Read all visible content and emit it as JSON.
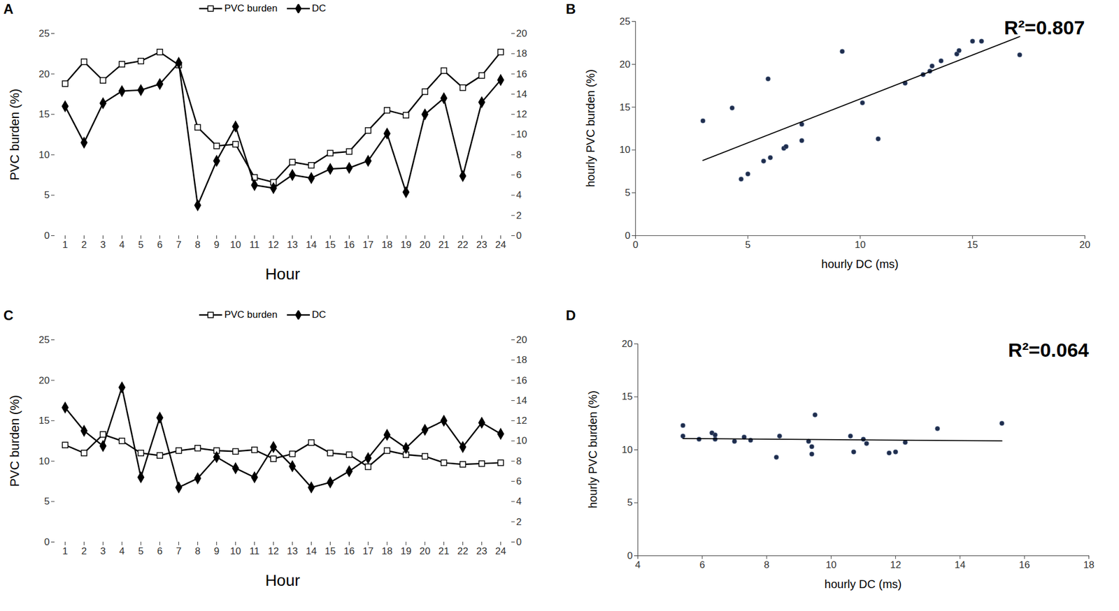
{
  "chart_data": [
    {
      "title": "A",
      "type": "line",
      "categories": [
        "1",
        "2",
        "3",
        "4",
        "5",
        "6",
        "7",
        "8",
        "9",
        "10",
        "11",
        "12",
        "13",
        "14",
        "15",
        "16",
        "17",
        "18",
        "19",
        "20",
        "21",
        "22",
        "23",
        "24"
      ],
      "xlabel": "Hour",
      "ylabel": "PVC burden (%)",
      "ylim": [
        0,
        25
      ],
      "yticks": [
        0,
        5,
        10,
        15,
        20,
        25
      ],
      "y2lim": [
        0,
        20
      ],
      "y2ticks": [
        0,
        2,
        4,
        6,
        8,
        10,
        12,
        14,
        16,
        18,
        20
      ],
      "legend": "top",
      "series": [
        {
          "name": "PVC burden",
          "color": "#000000",
          "marker": "open_square",
          "values": [
            18.8,
            21.5,
            19.2,
            21.2,
            21.6,
            22.7,
            21.1,
            13.4,
            11.1,
            11.3,
            7.2,
            6.6,
            9.1,
            8.7,
            10.2,
            10.4,
            13.0,
            15.5,
            14.9,
            17.8,
            20.4,
            18.3,
            19.8,
            22.7
          ]
        },
        {
          "name": "DC",
          "color": "#000000",
          "marker": "diamond",
          "axis": "y2",
          "values": [
            12.8,
            9.2,
            13.1,
            14.3,
            14.4,
            15.0,
            17.1,
            3.0,
            7.4,
            10.8,
            5.0,
            4.7,
            6.0,
            5.7,
            6.6,
            6.7,
            7.4,
            10.1,
            4.3,
            12.0,
            13.6,
            5.9,
            13.2,
            15.4
          ]
        }
      ]
    },
    {
      "title": "B",
      "type": "scatter",
      "xlabel": "hourly DC (ms)",
      "ylabel": "hourly PVC burden  (%)",
      "x": [
        12.8,
        9.2,
        13.1,
        14.3,
        14.4,
        15.0,
        17.1,
        3.0,
        7.4,
        10.8,
        5.0,
        4.7,
        6.0,
        5.7,
        6.6,
        6.7,
        7.4,
        10.1,
        4.3,
        12.0,
        13.6,
        5.9,
        13.2,
        15.4
      ],
      "values": [
        18.8,
        21.5,
        19.2,
        21.2,
        21.6,
        22.7,
        21.1,
        13.4,
        11.1,
        11.3,
        7.2,
        6.6,
        9.1,
        8.7,
        10.2,
        10.4,
        13.0,
        15.5,
        14.9,
        17.8,
        20.4,
        18.3,
        19.8,
        22.7
      ],
      "color": "#1f2d4d",
      "xlim": [
        0,
        20
      ],
      "xticks": [
        0,
        5,
        10,
        15,
        20
      ],
      "ylim": [
        0,
        25
      ],
      "yticks": [
        0,
        5,
        10,
        15,
        20,
        25
      ],
      "annotations": [
        "R²=0.807"
      ]
    },
    {
      "title": "C",
      "type": "line",
      "categories": [
        "1",
        "2",
        "3",
        "4",
        "5",
        "6",
        "7",
        "8",
        "9",
        "10",
        "11",
        "12",
        "13",
        "14",
        "15",
        "16",
        "17",
        "18",
        "19",
        "20",
        "21",
        "22",
        "23",
        "24"
      ],
      "xlabel": "Hour",
      "ylabel": "PVC burden (%)",
      "ylim": [
        0,
        25
      ],
      "yticks": [
        0,
        5,
        10,
        15,
        20,
        25
      ],
      "y2lim": [
        0,
        20
      ],
      "y2ticks": [
        0,
        2,
        4,
        6,
        8,
        10,
        12,
        14,
        16,
        18,
        20
      ],
      "legend": "top",
      "series": [
        {
          "name": "PVC burden",
          "color": "#000000",
          "marker": "open_square",
          "values": [
            12.0,
            11.0,
            13.3,
            12.5,
            11.0,
            10.7,
            11.3,
            11.6,
            11.3,
            11.2,
            11.4,
            10.3,
            10.9,
            12.3,
            11.0,
            10.8,
            9.3,
            11.3,
            10.8,
            10.6,
            9.8,
            9.6,
            9.7,
            9.8
          ]
        },
        {
          "name": "DC",
          "color": "#000000",
          "marker": "diamond",
          "axis": "y2",
          "values": [
            13.3,
            11.0,
            9.5,
            15.3,
            6.4,
            12.3,
            5.4,
            6.3,
            8.4,
            7.3,
            6.4,
            9.4,
            7.5,
            5.4,
            5.9,
            7.0,
            8.3,
            10.6,
            9.3,
            11.1,
            12.0,
            9.4,
            11.8,
            10.7
          ]
        }
      ]
    },
    {
      "title": "D",
      "type": "scatter",
      "xlabel": "hourly DC (ms)",
      "ylabel": "hourly PVC burden (%)",
      "x": [
        13.3,
        11.0,
        9.5,
        15.3,
        6.4,
        12.3,
        5.4,
        6.3,
        8.4,
        7.3,
        6.4,
        9.4,
        7.5,
        5.4,
        5.9,
        7.0,
        8.3,
        10.6,
        9.3,
        11.1,
        12.0,
        9.4,
        11.8,
        10.7
      ],
      "values": [
        12.0,
        11.0,
        13.3,
        12.5,
        11.0,
        10.7,
        11.3,
        11.6,
        11.3,
        11.2,
        11.4,
        10.3,
        10.9,
        12.3,
        11.0,
        10.8,
        9.3,
        11.3,
        10.8,
        10.6,
        9.8,
        9.6,
        9.7,
        9.8
      ],
      "color": "#1f2d4d",
      "xlim": [
        4,
        18
      ],
      "xticks": [
        4,
        6,
        8,
        10,
        12,
        14,
        16,
        18
      ],
      "ylim": [
        0,
        20
      ],
      "yticks": [
        0,
        5,
        10,
        15,
        20
      ],
      "annotations": [
        "R²=0.064"
      ]
    }
  ]
}
